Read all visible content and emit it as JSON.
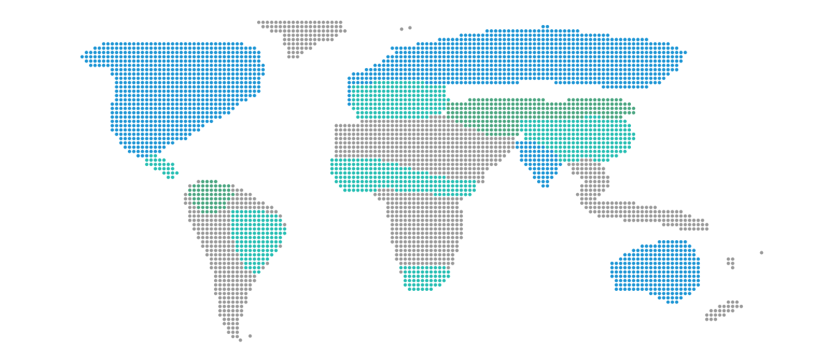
{
  "map": {
    "style": "dotted-world-map",
    "background": "#ffffff",
    "palette": {
      "blue": "#2398d6",
      "teal": "#2cc0b5",
      "green": "#4fa884",
      "gray": "#9c9c9c"
    },
    "regions": [
      {
        "name": "north-america",
        "color": "blue"
      },
      {
        "name": "greenland",
        "color": "gray"
      },
      {
        "name": "central-america",
        "color": "teal"
      },
      {
        "name": "south-america-north",
        "color": "green"
      },
      {
        "name": "south-america-east",
        "color": "teal"
      },
      {
        "name": "south-america-south",
        "color": "gray"
      },
      {
        "name": "europe-north",
        "color": "blue"
      },
      {
        "name": "europe-central",
        "color": "teal"
      },
      {
        "name": "russia",
        "color": "blue"
      },
      {
        "name": "central-asia",
        "color": "green"
      },
      {
        "name": "china",
        "color": "teal"
      },
      {
        "name": "india",
        "color": "blue"
      },
      {
        "name": "middle-east",
        "color": "gray"
      },
      {
        "name": "north-africa",
        "color": "gray"
      },
      {
        "name": "west-africa",
        "color": "teal"
      },
      {
        "name": "central-africa",
        "color": "gray"
      },
      {
        "name": "southern-africa",
        "color": "teal"
      },
      {
        "name": "southeast-asia",
        "color": "gray"
      },
      {
        "name": "indonesia",
        "color": "gray"
      },
      {
        "name": "australia",
        "color": "blue"
      },
      {
        "name": "new-zealand",
        "color": "gray"
      }
    ]
  }
}
